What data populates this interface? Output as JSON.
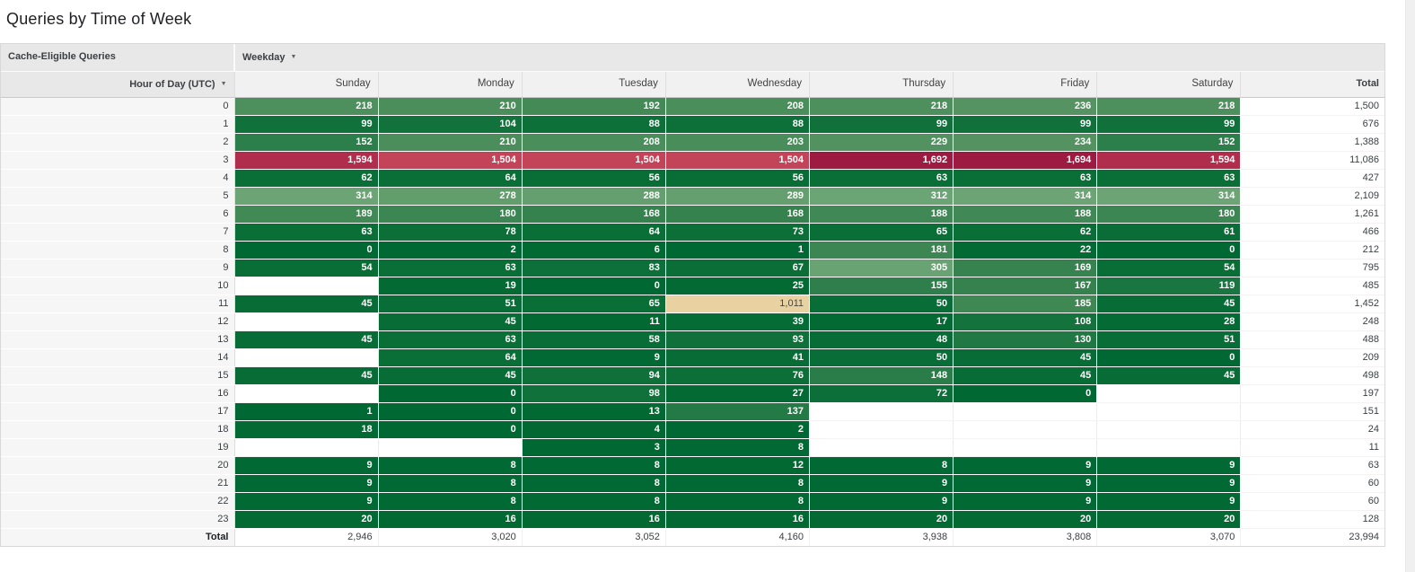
{
  "title": "Queries by Time of Week",
  "header": {
    "metric_label": "Cache-Eligible Queries",
    "column_dimension_label": "Weekday",
    "row_dimension_label": "Hour of Day (UTC)",
    "total_label": "Total"
  },
  "icons": {
    "dropdown_caret": "▼"
  },
  "chart_data": {
    "type": "heatmap",
    "columns": [
      "Sunday",
      "Monday",
      "Tuesday",
      "Wednesday",
      "Thursday",
      "Friday",
      "Saturday"
    ],
    "rows": [
      {
        "hour": "0",
        "values": [
          218,
          210,
          192,
          208,
          218,
          236,
          218
        ],
        "total": 1500
      },
      {
        "hour": "1",
        "values": [
          99,
          104,
          88,
          88,
          99,
          99,
          99
        ],
        "total": 676
      },
      {
        "hour": "2",
        "values": [
          152,
          210,
          208,
          203,
          229,
          234,
          152
        ],
        "total": 1388
      },
      {
        "hour": "3",
        "values": [
          1594,
          1504,
          1504,
          1504,
          1692,
          1694,
          1594
        ],
        "total": 11086
      },
      {
        "hour": "4",
        "values": [
          62,
          64,
          56,
          56,
          63,
          63,
          63
        ],
        "total": 427
      },
      {
        "hour": "5",
        "values": [
          314,
          278,
          288,
          289,
          312,
          314,
          314
        ],
        "total": 2109
      },
      {
        "hour": "6",
        "values": [
          189,
          180,
          168,
          168,
          188,
          188,
          180
        ],
        "total": 1261
      },
      {
        "hour": "7",
        "values": [
          63,
          78,
          64,
          73,
          65,
          62,
          61
        ],
        "total": 466
      },
      {
        "hour": "8",
        "values": [
          0,
          2,
          6,
          1,
          181,
          22,
          0
        ],
        "total": 212
      },
      {
        "hour": "9",
        "values": [
          54,
          63,
          83,
          67,
          305,
          169,
          54
        ],
        "total": 795
      },
      {
        "hour": "10",
        "values": [
          null,
          19,
          0,
          25,
          155,
          167,
          119
        ],
        "total": 485
      },
      {
        "hour": "11",
        "values": [
          45,
          51,
          65,
          1011,
          50,
          185,
          45
        ],
        "total": 1452
      },
      {
        "hour": "12",
        "values": [
          null,
          45,
          11,
          39,
          17,
          108,
          28
        ],
        "total": 248
      },
      {
        "hour": "13",
        "values": [
          45,
          63,
          58,
          93,
          48,
          130,
          51
        ],
        "total": 488
      },
      {
        "hour": "14",
        "values": [
          null,
          64,
          9,
          41,
          50,
          45,
          0
        ],
        "total": 209
      },
      {
        "hour": "15",
        "values": [
          45,
          45,
          94,
          76,
          148,
          45,
          45
        ],
        "total": 498
      },
      {
        "hour": "16",
        "values": [
          null,
          0,
          98,
          27,
          72,
          0,
          null
        ],
        "total": 197
      },
      {
        "hour": "17",
        "values": [
          1,
          0,
          13,
          137,
          null,
          null,
          null
        ],
        "total": 151
      },
      {
        "hour": "18",
        "values": [
          18,
          0,
          4,
          2,
          null,
          null,
          null
        ],
        "total": 24
      },
      {
        "hour": "19",
        "values": [
          null,
          null,
          3,
          8,
          null,
          null,
          null
        ],
        "total": 11
      },
      {
        "hour": "20",
        "values": [
          9,
          8,
          8,
          12,
          8,
          9,
          9
        ],
        "total": 63
      },
      {
        "hour": "21",
        "values": [
          9,
          8,
          8,
          8,
          9,
          9,
          9
        ],
        "total": 60
      },
      {
        "hour": "22",
        "values": [
          9,
          8,
          8,
          8,
          9,
          9,
          9
        ],
        "total": 60
      },
      {
        "hour": "23",
        "values": [
          20,
          16,
          16,
          16,
          20,
          20,
          20
        ],
        "total": 128
      }
    ],
    "column_totals": [
      2946,
      3020,
      3052,
      4160,
      3938,
      3808,
      3070
    ],
    "grand_total": 23994,
    "color_scale": {
      "empty": "#ffffff",
      "anchors": [
        [
          0,
          "#006832"
        ],
        [
          100,
          "#10713a"
        ],
        [
          150,
          "#2b7d49"
        ],
        [
          200,
          "#478c59"
        ],
        [
          250,
          "#5a9765"
        ],
        [
          314,
          "#6ca475"
        ],
        [
          1011,
          "#e9d2a2"
        ],
        [
          1504,
          "#c34459"
        ],
        [
          1594,
          "#b02d4c"
        ],
        [
          1694,
          "#9d1a41"
        ]
      ]
    }
  }
}
